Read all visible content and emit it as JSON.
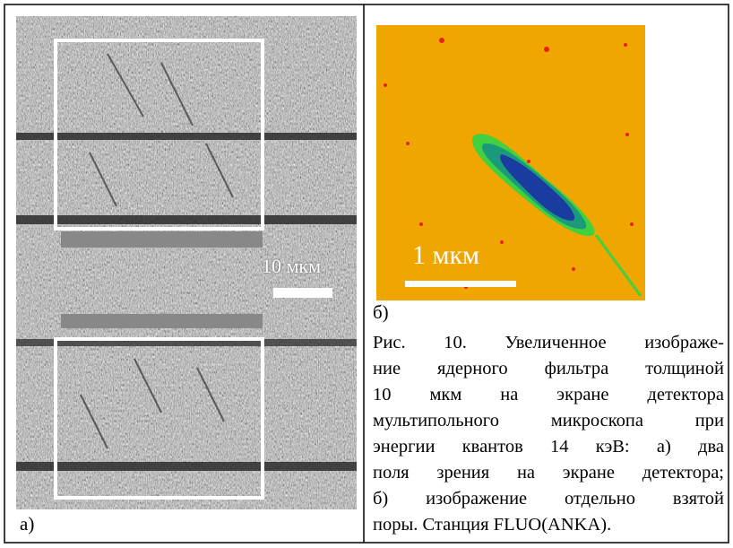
{
  "figure": {
    "panel_a": {
      "scale_label": "10 мкм",
      "label": "а)"
    },
    "panel_b": {
      "scale_label": "1 мкм",
      "label": "б)"
    },
    "caption": {
      "lines": [
        "Рис. 10. Увеличенное изображе-",
        "ние ядерного фильтра толщиной",
        "10 мкм на экране детектора",
        "мультипольного микроскопа при",
        "энергии квантов 14 кэВ: а) два",
        "поля зрения на экране детектора;",
        "б) изображение отдельно взятой",
        "поры. Станция FLUO(ANKA)."
      ]
    }
  }
}
